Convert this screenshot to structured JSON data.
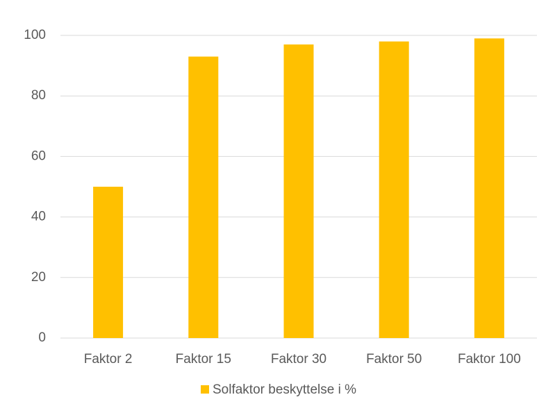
{
  "chart_data": {
    "type": "bar",
    "categories": [
      "Faktor 2",
      "Faktor 15",
      "Faktor 30",
      "Faktor 50",
      "Faktor 100"
    ],
    "series": [
      {
        "name": "Solfaktor beskyttelse i %",
        "color": "#ffc000",
        "values": [
          50,
          93,
          97,
          98,
          99
        ]
      }
    ],
    "ylim": [
      0,
      100
    ],
    "yticks": [
      0,
      20,
      40,
      60,
      80,
      100
    ],
    "grid": true,
    "legend": "bottom"
  }
}
